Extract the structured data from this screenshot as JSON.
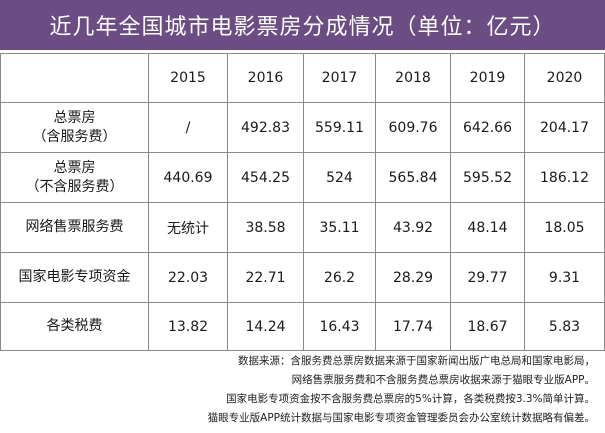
{
  "title": "近几年全国城市电影票房分成情况（单位：亿元）",
  "colors": {
    "title_bg": "#6b4c83",
    "title_text": "#ffffff",
    "grid_line": "#8a8a8a"
  },
  "table": {
    "corner": "",
    "years": [
      "2015",
      "2016",
      "2017",
      "2018",
      "2019",
      "2020"
    ],
    "rows": [
      {
        "label_line1": "总票房",
        "label_line2": "（含服务费）",
        "values": [
          "/",
          "492.83",
          "559.11",
          "609.76",
          "642.66",
          "204.17"
        ]
      },
      {
        "label_line1": "总票房",
        "label_line2": "（不含服务费）",
        "values": [
          "440.69",
          "454.25",
          "524",
          "565.84",
          "595.52",
          "186.12"
        ]
      },
      {
        "label_line1": "网络售票服务费",
        "label_line2": "",
        "values": [
          "无统计",
          "38.58",
          "35.11",
          "43.92",
          "48.14",
          "18.05"
        ]
      },
      {
        "label_line1": "国家电影专项资金",
        "label_line2": "",
        "values": [
          "22.03",
          "22.71",
          "26.2",
          "28.29",
          "29.77",
          "9.31"
        ]
      },
      {
        "label_line1": "各类税费",
        "label_line2": "",
        "values": [
          "13.82",
          "14.24",
          "16.43",
          "17.74",
          "18.67",
          "5.83"
        ]
      }
    ]
  },
  "footnote": {
    "line1": "数据来源：含服务费总票房数据来源于国家新闻出版广电总局和国家电影局，",
    "line2": "网络售票服务费和不含服务费总票房收据来源于猫眼专业版APP。",
    "line3": "国家电影专项资金按不含服务费总票房的5%计算，各类税费按3.3%简单计算。",
    "line4": "猫眼专业版APP统计数据与国家电影专项资金管理委员会办公室统计数据略有偏差。"
  }
}
